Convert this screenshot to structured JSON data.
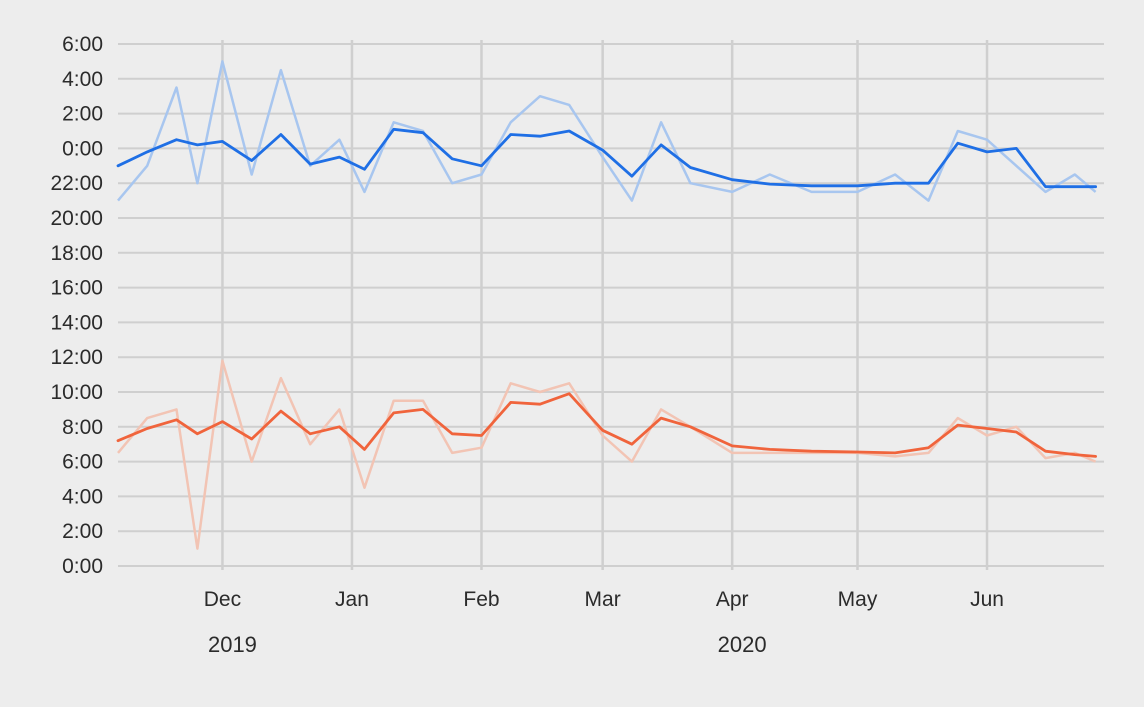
{
  "chart_data": {
    "type": "line",
    "ylabels": [
      "0:00",
      "2:00",
      "4:00",
      "6:00",
      "8:00",
      "10:00",
      "12:00",
      "14:00",
      "16:00",
      "18:00",
      "20:00",
      "22:00",
      "0:00",
      "2:00",
      "4:00",
      "6:00"
    ],
    "yaxis_note": "Clock time in hours on an axis running from 0:00 upward through 22:00 and wrapping to 0:00–6:00; values are hours (0–30, where 24+ means after midnight of the next day).",
    "ylim": [
      0,
      30
    ],
    "xlim": [
      "2019-11-06",
      "2020-06-29"
    ],
    "month_ticks": [
      {
        "date": "2019-12-01",
        "label": "Dec"
      },
      {
        "date": "2020-01-01",
        "label": "Jan"
      },
      {
        "date": "2020-02-01",
        "label": "Feb"
      },
      {
        "date": "2020-03-01",
        "label": "Mar"
      },
      {
        "date": "2020-04-01",
        "label": "Apr"
      },
      {
        "date": "2020-05-01",
        "label": "May"
      },
      {
        "date": "2020-06-01",
        "label": "Jun"
      }
    ],
    "year_labels": [
      {
        "date": "2019-12-01",
        "label": "2019"
      },
      {
        "date": "2020-04-01",
        "label": "2020"
      }
    ],
    "grid": true,
    "legend": "none",
    "series": [
      {
        "color": "#1f6fe5",
        "raw_color": "#a8c6ef",
        "x": [
          "2019-11-06",
          "2019-11-13",
          "2019-11-20",
          "2019-11-25",
          "2019-12-01",
          "2019-12-08",
          "2019-12-15",
          "2019-12-22",
          "2019-12-29",
          "2020-01-04",
          "2020-01-11",
          "2020-01-18",
          "2020-01-25",
          "2020-02-01",
          "2020-02-08",
          "2020-02-15",
          "2020-02-22",
          "2020-03-01",
          "2020-03-08",
          "2020-03-15",
          "2020-03-22",
          "2020-04-01",
          "2020-04-10",
          "2020-04-20",
          "2020-05-01",
          "2020-05-10",
          "2020-05-18",
          "2020-05-25",
          "2020-06-01",
          "2020-06-08",
          "2020-06-15",
          "2020-06-22",
          "2020-06-27"
        ],
        "smooth": [
          23.0,
          23.8,
          24.5,
          24.2,
          24.4,
          23.3,
          24.8,
          23.1,
          23.5,
          22.8,
          25.1,
          24.9,
          23.4,
          23.0,
          24.8,
          24.7,
          25.0,
          23.9,
          22.4,
          24.2,
          22.9,
          22.2,
          21.95,
          21.85,
          21.85,
          22.0,
          22.0,
          24.3,
          23.8,
          24.0,
          21.8,
          21.8,
          21.8
        ],
        "raw": [
          21.0,
          23.0,
          27.5,
          22.0,
          29.0,
          22.5,
          28.5,
          23.0,
          24.5,
          21.5,
          25.5,
          25.0,
          22.0,
          22.5,
          25.5,
          27.0,
          26.5,
          23.5,
          21.0,
          25.5,
          22.0,
          21.5,
          22.5,
          21.5,
          21.5,
          22.5,
          21.0,
          25.0,
          24.5,
          23.0,
          21.5,
          22.5,
          21.5
        ]
      },
      {
        "color": "#f0643c",
        "raw_color": "#f2c4b4",
        "x": [
          "2019-11-06",
          "2019-11-13",
          "2019-11-20",
          "2019-11-25",
          "2019-12-01",
          "2019-12-08",
          "2019-12-15",
          "2019-12-22",
          "2019-12-29",
          "2020-01-04",
          "2020-01-11",
          "2020-01-18",
          "2020-01-25",
          "2020-02-01",
          "2020-02-08",
          "2020-02-15",
          "2020-02-22",
          "2020-03-01",
          "2020-03-08",
          "2020-03-15",
          "2020-03-22",
          "2020-04-01",
          "2020-04-10",
          "2020-04-20",
          "2020-05-01",
          "2020-05-10",
          "2020-05-18",
          "2020-05-25",
          "2020-06-01",
          "2020-06-08",
          "2020-06-15",
          "2020-06-22",
          "2020-06-27"
        ],
        "smooth": [
          7.2,
          7.9,
          8.4,
          7.6,
          8.3,
          7.3,
          8.9,
          7.6,
          8.0,
          6.7,
          8.8,
          9.0,
          7.6,
          7.5,
          9.4,
          9.3,
          9.9,
          7.8,
          7.0,
          8.5,
          8.0,
          6.9,
          6.7,
          6.6,
          6.55,
          6.5,
          6.8,
          8.1,
          7.9,
          7.7,
          6.6,
          6.4,
          6.3
        ],
        "raw": [
          6.5,
          8.5,
          9.0,
          1.0,
          11.8,
          6.0,
          10.8,
          7.0,
          9.0,
          4.5,
          9.5,
          9.5,
          6.5,
          6.8,
          10.5,
          10.0,
          10.5,
          7.5,
          6.0,
          9.0,
          8.0,
          6.5,
          6.5,
          6.5,
          6.5,
          6.3,
          6.5,
          8.5,
          7.5,
          8.0,
          6.2,
          6.5,
          6.0
        ]
      }
    ]
  }
}
